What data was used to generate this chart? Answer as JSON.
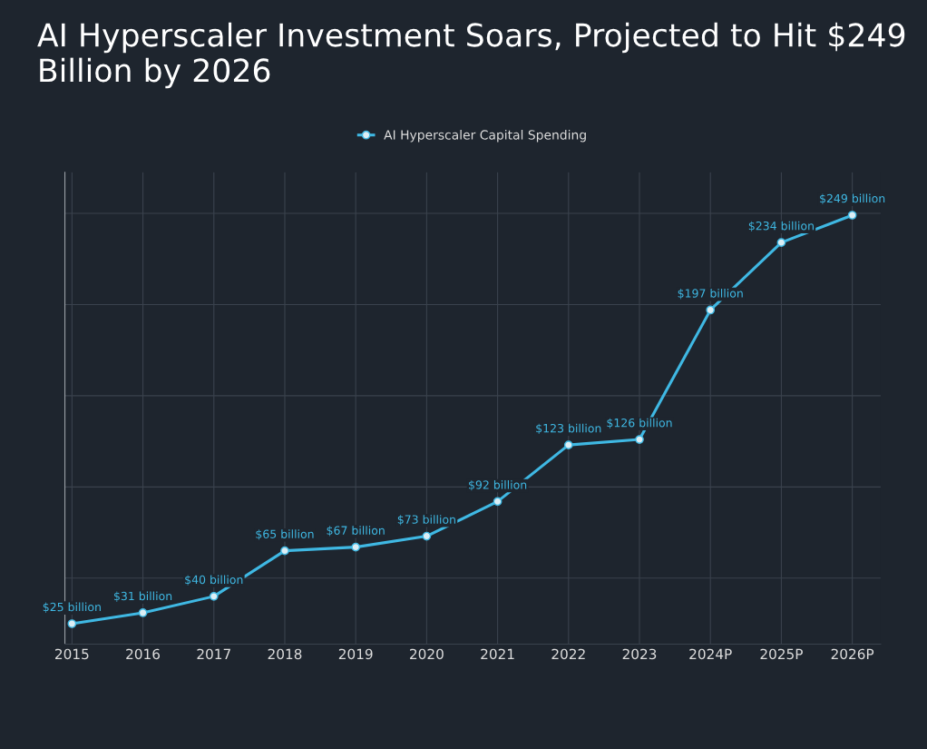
{
  "chart_data": {
    "type": "line",
    "title": "AI Hyperscaler Investment Soars, Projected to Hit $249 Billion by 2026",
    "categories": [
      "2015",
      "2016",
      "2017",
      "2018",
      "2019",
      "2020",
      "2021",
      "2022",
      "2023",
      "2024P",
      "2025P",
      "2026P"
    ],
    "series": [
      {
        "name": "AI Hyperscaler Capital Spending",
        "color": "#3fb8e3",
        "values": [
          25,
          31,
          40,
          65,
          67,
          73,
          92,
          123,
          126,
          197,
          234,
          249
        ],
        "value_labels": [
          "$25 billion",
          "$31 billion",
          "$40 billion",
          "$65 billion",
          "$67 billion",
          "$73 billion",
          "$92 billion",
          "$123 billion",
          "$126 billion",
          "$197 billion",
          "$234 billion",
          "$249 billion"
        ]
      }
    ],
    "marker": "circle",
    "line_style": "solid",
    "grid": true,
    "legend": "top",
    "tick_labels": "x"
  }
}
